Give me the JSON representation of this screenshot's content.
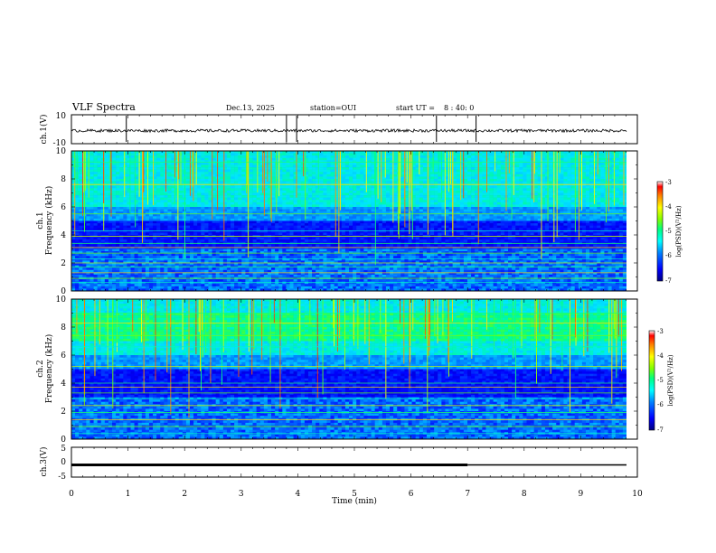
{
  "header": {
    "title": "VLF Spectra",
    "date": "Dec.13, 2025",
    "station": "station=OUI",
    "start_label": "start  UT  =",
    "start_time": "8 : 40: 0"
  },
  "chart_data": [
    {
      "type": "line",
      "panel": "ch1-waveform",
      "ylabel": "ch.1(V)",
      "ylim": [
        -10,
        10
      ],
      "y_ticks": [
        "10",
        "-10"
      ],
      "xlim": [
        0,
        10
      ],
      "baseline": -1,
      "noise_amplitude": 1,
      "spikes_at_min": [
        0.97,
        3.8,
        3.98,
        6.45,
        7.15
      ]
    },
    {
      "type": "heatmap",
      "panel": "ch1-spectrogram",
      "ylabel": "Frequency (kHz)",
      "channel_label": "ch.1",
      "ylim": [
        0,
        10
      ],
      "y_ticks": [
        "0",
        "2",
        "4",
        "6",
        "8",
        "10"
      ],
      "xlim": [
        0,
        9.8
      ],
      "colorbar": {
        "label": "log(PSD)(V²/Hz)",
        "range": [
          -7,
          -3
        ],
        "ticks": [
          "-3",
          "-4",
          "-5",
          "-6",
          "-7"
        ]
      }
    },
    {
      "type": "heatmap",
      "panel": "ch2-spectrogram",
      "ylabel": "Frequency (kHz)",
      "channel_label": "ch.2",
      "ylim": [
        0,
        10
      ],
      "y_ticks": [
        "0",
        "2",
        "4",
        "6",
        "8",
        "10"
      ],
      "xlim": [
        0,
        9.8
      ],
      "colorbar": {
        "label": "log(PSD)(V²/Hz)",
        "range": [
          -7,
          -3
        ],
        "ticks": [
          "-3",
          "-4",
          "-5",
          "-6",
          "-7"
        ]
      }
    },
    {
      "type": "line",
      "panel": "ch3-waveform",
      "ylabel": "ch.3(V)",
      "ylim": [
        -5,
        5
      ],
      "y_ticks": [
        "5",
        "0",
        "-5"
      ],
      "xlim": [
        0,
        10
      ],
      "level": -1,
      "thick_until_min": 7.0
    }
  ],
  "xaxis": {
    "label": "Time (min)",
    "ticks": [
      "0",
      "1",
      "2",
      "3",
      "4",
      "5",
      "6",
      "7",
      "8",
      "9",
      "10"
    ]
  },
  "colors": {
    "colormap": [
      "#0000c8",
      "#0064ff",
      "#00c8ff",
      "#00ff96",
      "#96ff00",
      "#ffff00",
      "#ff9600",
      "#ff0000"
    ],
    "background_low": "#00004a",
    "trace": "#000000"
  }
}
